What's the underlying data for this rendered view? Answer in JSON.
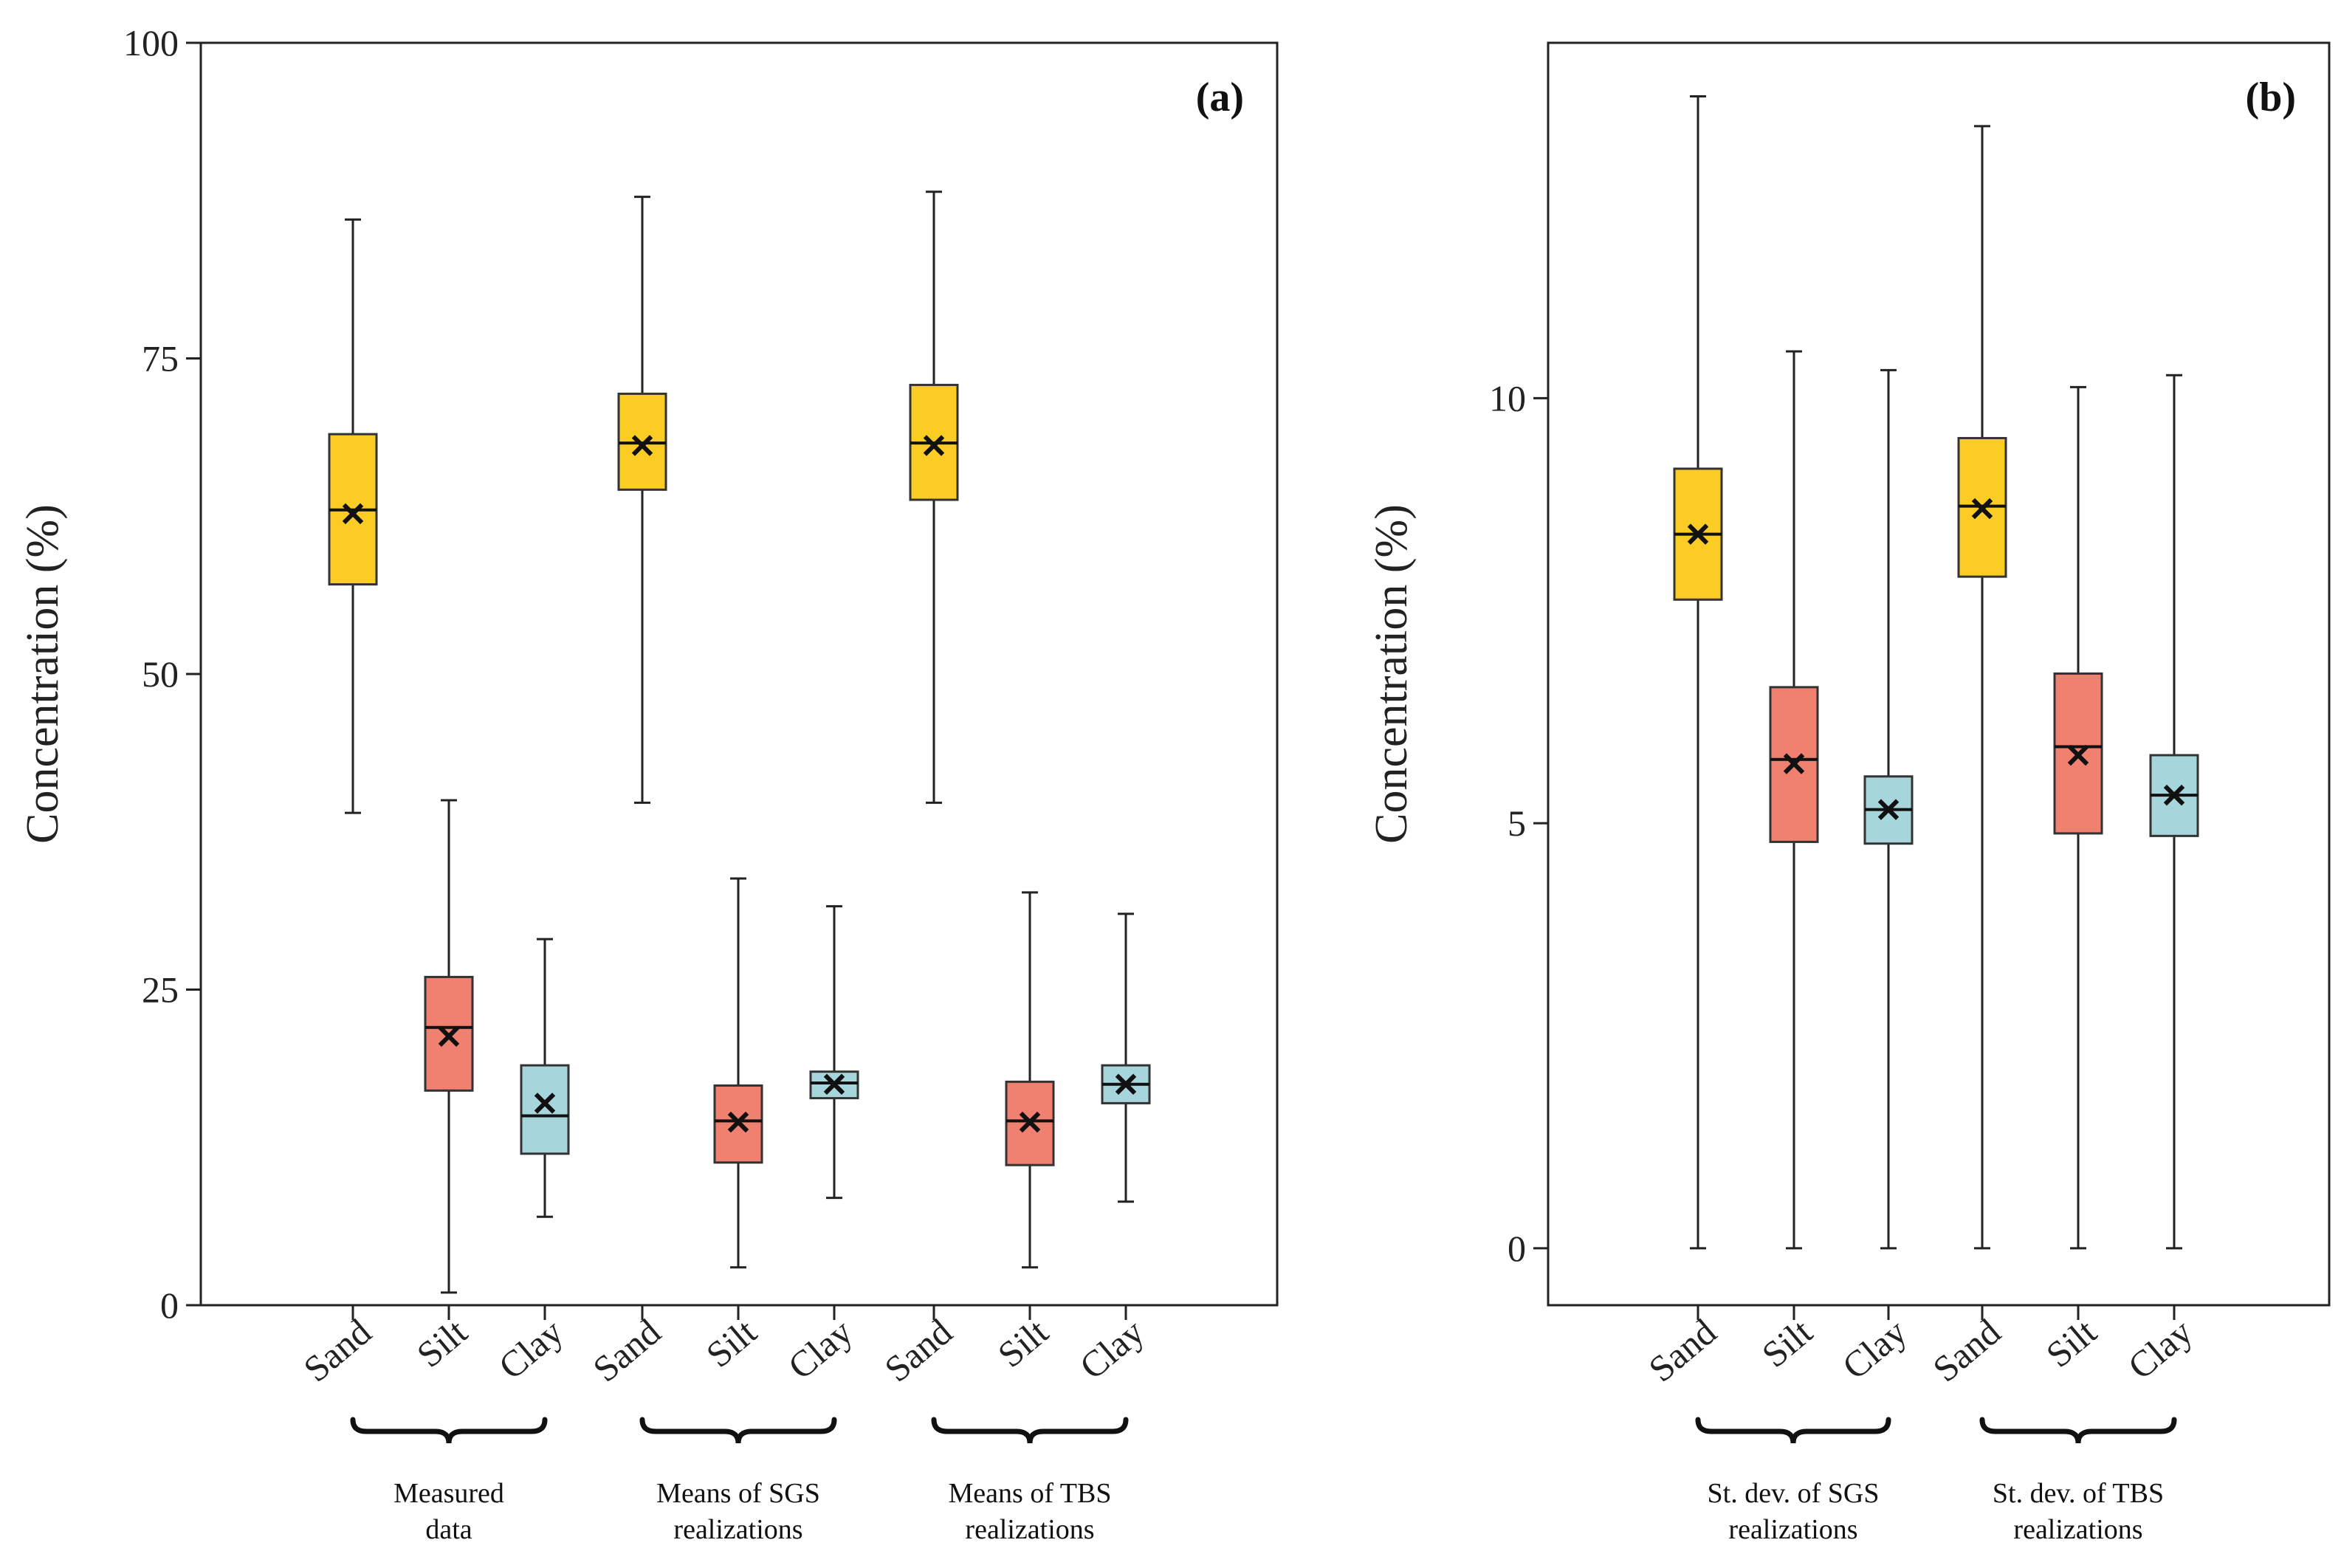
{
  "colors": {
    "sand": "#FBCC24",
    "silt": "#F08070",
    "clay": "#A7D5DC"
  },
  "chart_data": [
    {
      "type": "box",
      "panel_label": "(a)",
      "ylabel": "Concentration (%)",
      "ylim": [
        0,
        100
      ],
      "yticks": [
        "0",
        "25",
        "50",
        "75",
        "100"
      ],
      "groups": [
        {
          "label": [
            "Measured",
            "data"
          ],
          "categories": [
            "Sand",
            "Silt",
            "Clay"
          ]
        },
        {
          "label": [
            "Means of SGS",
            "realizations"
          ],
          "categories": [
            "Sand",
            "Silt",
            "Clay"
          ]
        },
        {
          "label": [
            "Means of TBS",
            "realizations"
          ],
          "categories": [
            "Sand",
            "Silt",
            "Clay"
          ]
        }
      ],
      "boxes": [
        {
          "category": "Sand",
          "min": 39,
          "q1": 57.1,
          "median": 63,
          "q3": 69,
          "max": 86,
          "mean": 62.7
        },
        {
          "category": "Silt",
          "min": 1,
          "q1": 17,
          "median": 22,
          "q3": 26,
          "max": 40,
          "mean": 21.3
        },
        {
          "category": "Clay",
          "min": 7,
          "q1": 12,
          "median": 15,
          "q3": 19,
          "max": 29,
          "mean": 16
        },
        {
          "category": "Sand",
          "min": 39.8,
          "q1": 64.6,
          "median": 68.3,
          "q3": 72.2,
          "max": 87.8,
          "mean": 68.1
        },
        {
          "category": "Silt",
          "min": 3,
          "q1": 11.3,
          "median": 14.6,
          "q3": 17.4,
          "max": 33.8,
          "mean": 14.5
        },
        {
          "category": "Clay",
          "min": 8.5,
          "q1": 16.4,
          "median": 17.6,
          "q3": 18.5,
          "max": 31.6,
          "mean": 17.5
        },
        {
          "category": "Sand",
          "min": 39.8,
          "q1": 63.8,
          "median": 68.3,
          "q3": 72.9,
          "max": 88.2,
          "mean": 68.1
        },
        {
          "category": "Silt",
          "min": 3,
          "q1": 11.1,
          "median": 14.6,
          "q3": 17.7,
          "max": 32.7,
          "mean": 14.5
        },
        {
          "category": "Clay",
          "min": 8.2,
          "q1": 16,
          "median": 17.5,
          "q3": 19,
          "max": 31,
          "mean": 17.5
        }
      ]
    },
    {
      "type": "box",
      "panel_label": "(b)",
      "ylabel": "Concentration (%)",
      "ylim": [
        -0.67,
        14.18
      ],
      "yticks": [
        "0",
        "5",
        "10"
      ],
      "groups": [
        {
          "label": [
            "St. dev. of SGS",
            "realizations"
          ],
          "categories": [
            "Sand",
            "Silt",
            "Clay"
          ]
        },
        {
          "label": [
            "St. dev. of TBS",
            "realizations"
          ],
          "categories": [
            "Sand",
            "Silt",
            "Clay"
          ]
        }
      ],
      "boxes": [
        {
          "category": "Sand",
          "min": 0,
          "q1": 7.63,
          "median": 8.4,
          "q3": 9.17,
          "max": 13.55,
          "mean": 8.4
        },
        {
          "category": "Silt",
          "min": 0,
          "q1": 4.78,
          "median": 5.75,
          "q3": 6.6,
          "max": 10.55,
          "mean": 5.7
        },
        {
          "category": "Clay",
          "min": 0,
          "q1": 4.76,
          "median": 5.16,
          "q3": 5.55,
          "max": 10.33,
          "mean": 5.16
        },
        {
          "category": "Sand",
          "min": 0,
          "q1": 7.9,
          "median": 8.73,
          "q3": 9.53,
          "max": 13.2,
          "mean": 8.7
        },
        {
          "category": "Silt",
          "min": 0,
          "q1": 4.88,
          "median": 5.9,
          "q3": 6.76,
          "max": 10.13,
          "mean": 5.8
        },
        {
          "category": "Clay",
          "min": 0,
          "q1": 4.85,
          "median": 5.33,
          "q3": 5.8,
          "max": 10.27,
          "mean": 5.33
        }
      ]
    }
  ]
}
